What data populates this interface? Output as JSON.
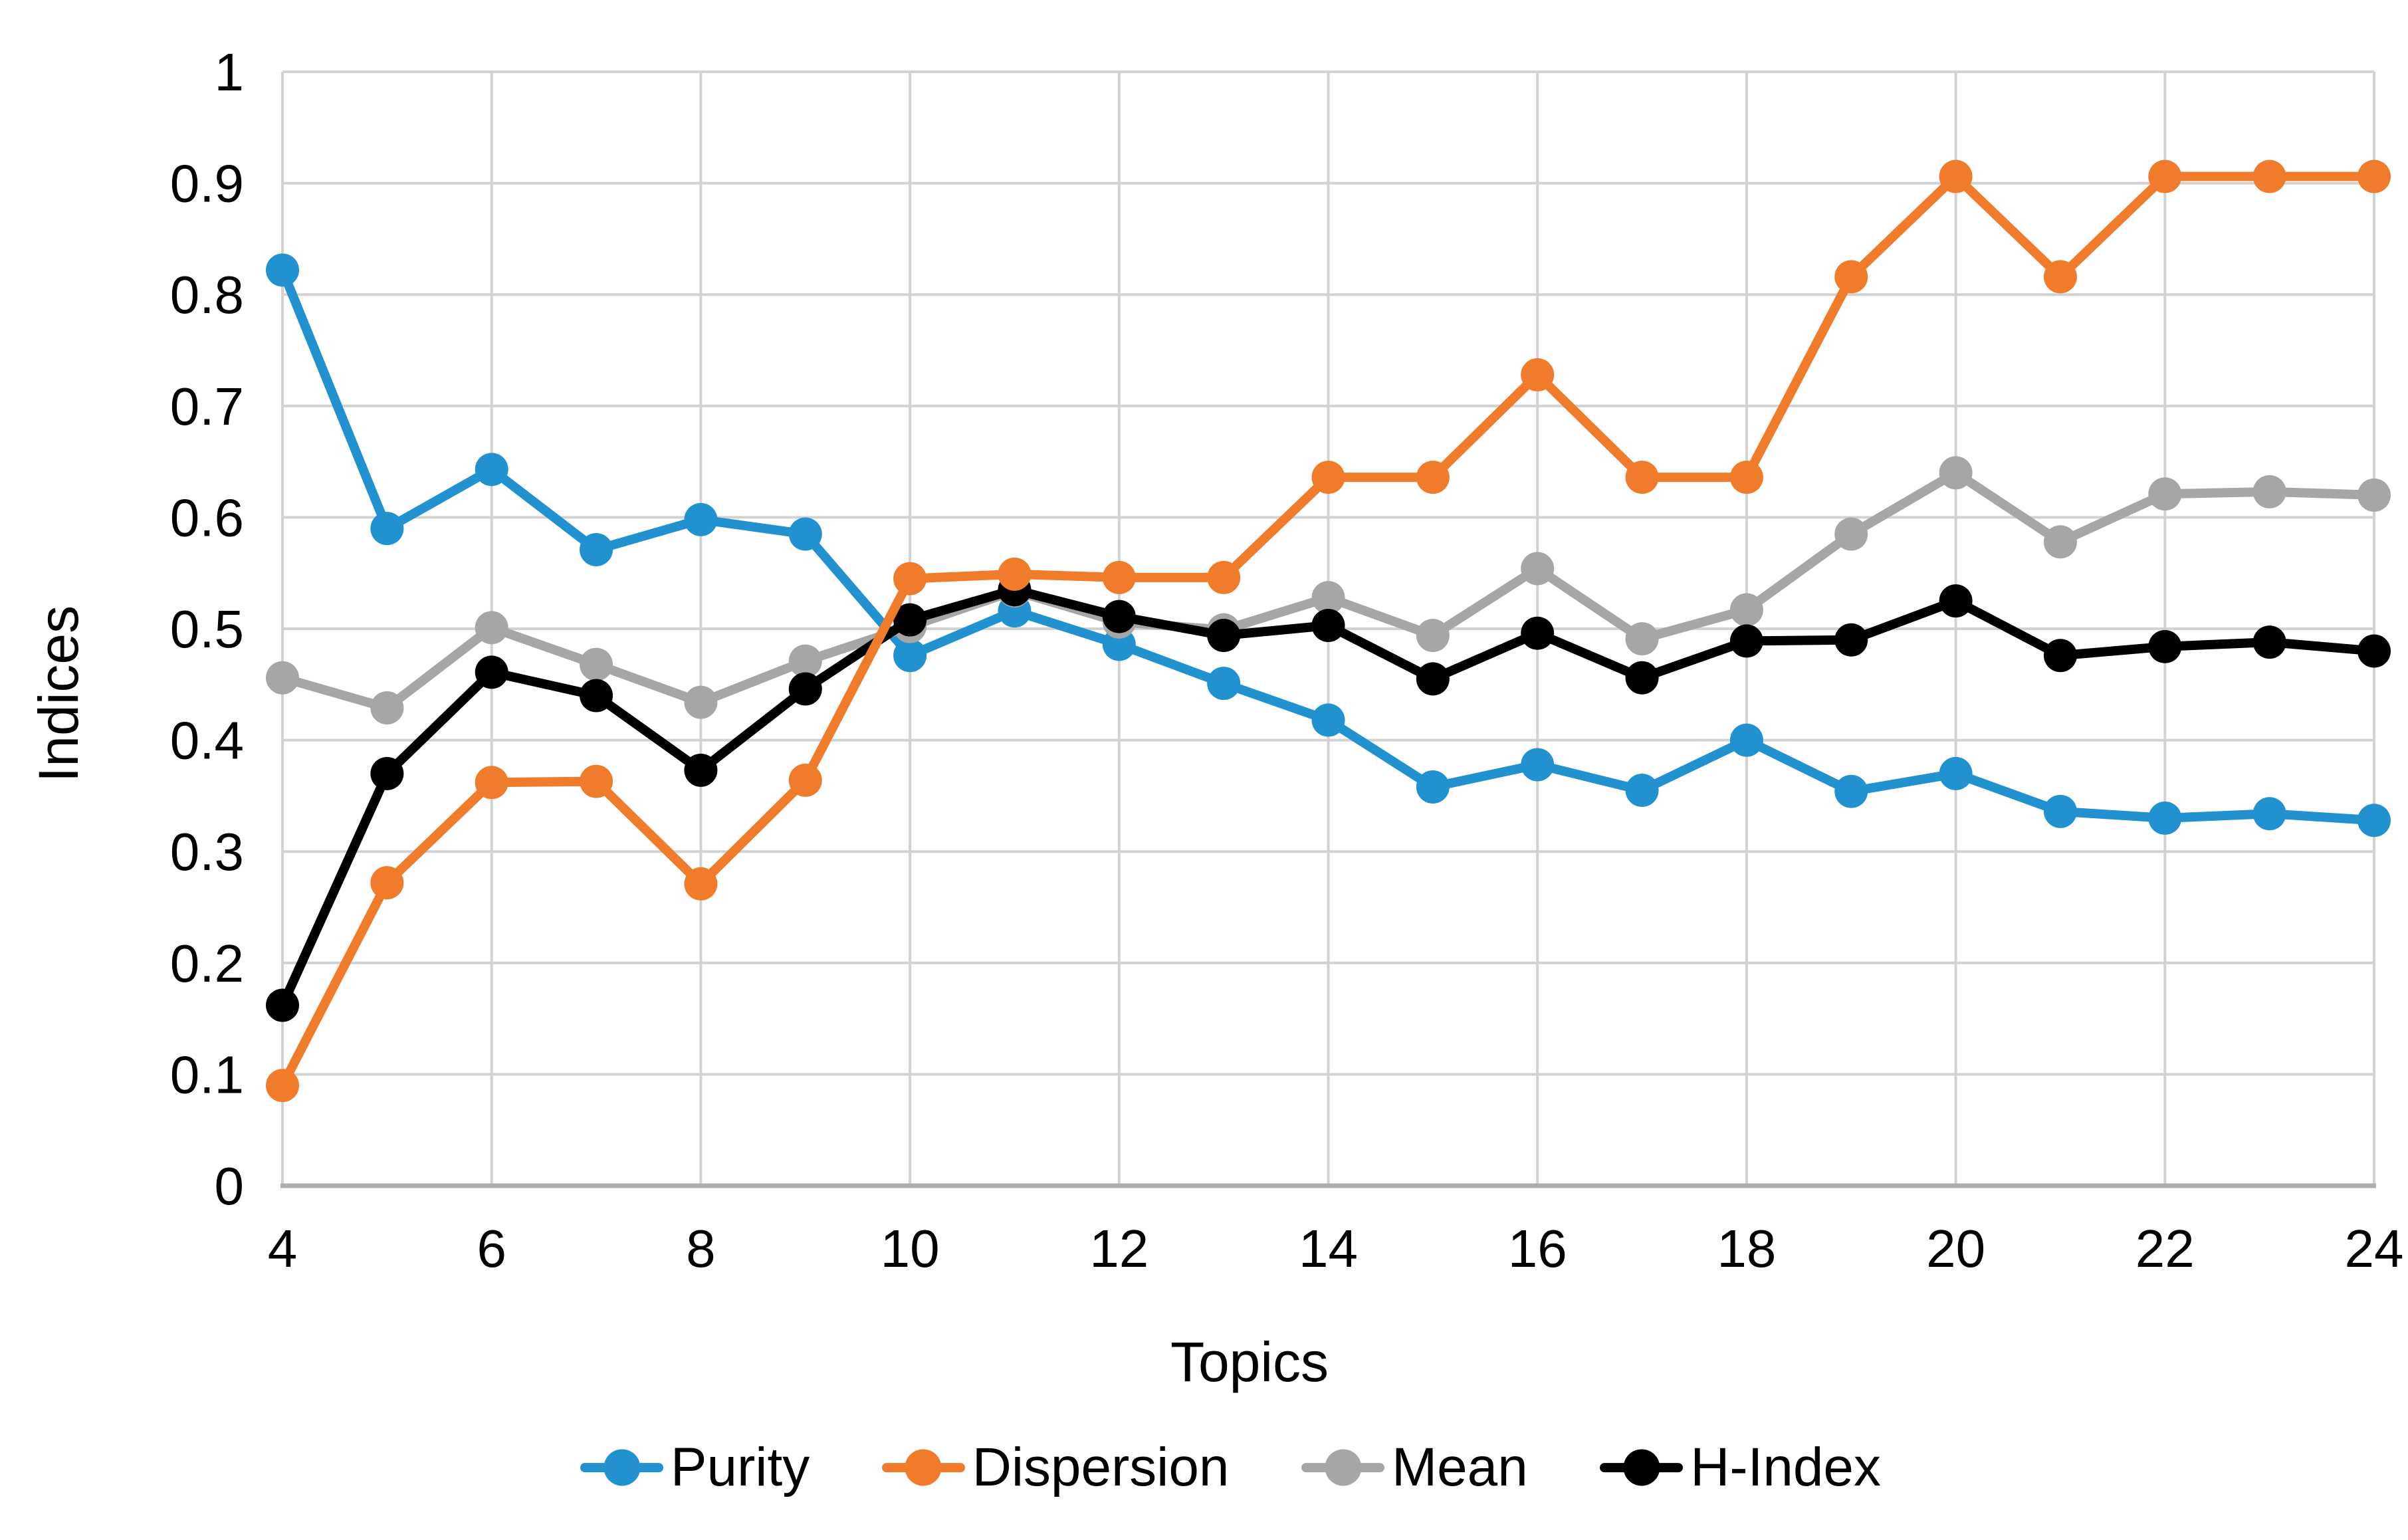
{
  "figure": {
    "background": "#FFFFFF"
  },
  "chart_data": {
    "type": "line",
    "title": "",
    "xlabel": "Topics",
    "ylabel": "Indices",
    "xlim": [
      4,
      24
    ],
    "ylim": [
      0,
      1
    ],
    "grid": true,
    "legend_position": "bottom",
    "grid_color": "#D2D2D2",
    "axis_line_color": "#ADADAD",
    "tick_label_color": "#000000",
    "xticks": [
      4,
      6,
      8,
      10,
      12,
      14,
      16,
      18,
      20,
      22,
      24
    ],
    "xtick_labels": [
      "4",
      "6",
      "8",
      "10",
      "12",
      "14",
      "16",
      "18",
      "20",
      "22",
      "24"
    ],
    "yticks": [
      0,
      0.1,
      0.2,
      0.3,
      0.4,
      0.5,
      0.6,
      0.7,
      0.8,
      0.9,
      1
    ],
    "ytick_labels": [
      "0",
      "0.1",
      "0.2",
      "0.3",
      "0.4",
      "0.5",
      "0.6",
      "0.7",
      "0.8",
      "0.9",
      "1"
    ],
    "x": [
      4,
      5,
      6,
      7,
      8,
      9,
      10,
      11,
      12,
      13,
      14,
      15,
      16,
      17,
      18,
      19,
      20,
      21,
      22,
      23,
      24
    ],
    "series": [
      {
        "name": "Purity",
        "color": "#2191D0",
        "z": 1,
        "values": [
          0.822,
          0.59,
          0.643,
          0.571,
          0.598,
          0.585,
          0.476,
          0.516,
          0.486,
          0.451,
          0.418,
          0.358,
          0.378,
          0.355,
          0.4,
          0.354,
          0.37,
          0.336,
          0.33,
          0.334,
          0.328
        ]
      },
      {
        "name": "Dispersion",
        "color": "#F07C2B",
        "z": 4,
        "values": [
          0.09,
          0.272,
          0.362,
          0.363,
          0.271,
          0.364,
          0.545,
          0.549,
          0.546,
          0.546,
          0.636,
          0.636,
          0.728,
          0.636,
          0.636,
          0.816,
          0.906,
          0.816,
          0.906,
          0.906,
          0.906
        ]
      },
      {
        "name": "Mean",
        "color": "#A6A6A6",
        "z": 2,
        "values": [
          0.456,
          0.429,
          0.501,
          0.468,
          0.434,
          0.471,
          0.502,
          0.534,
          0.506,
          0.499,
          0.528,
          0.494,
          0.554,
          0.491,
          0.517,
          0.585,
          0.64,
          0.578,
          0.621,
          0.623,
          0.62
        ]
      },
      {
        "name": "H-Index",
        "color": "#000000",
        "z": 3,
        "values": [
          0.162,
          0.37,
          0.461,
          0.44,
          0.373,
          0.446,
          0.508,
          0.535,
          0.511,
          0.494,
          0.503,
          0.455,
          0.496,
          0.456,
          0.489,
          0.49,
          0.525,
          0.476,
          0.484,
          0.488,
          0.48
        ]
      }
    ]
  }
}
